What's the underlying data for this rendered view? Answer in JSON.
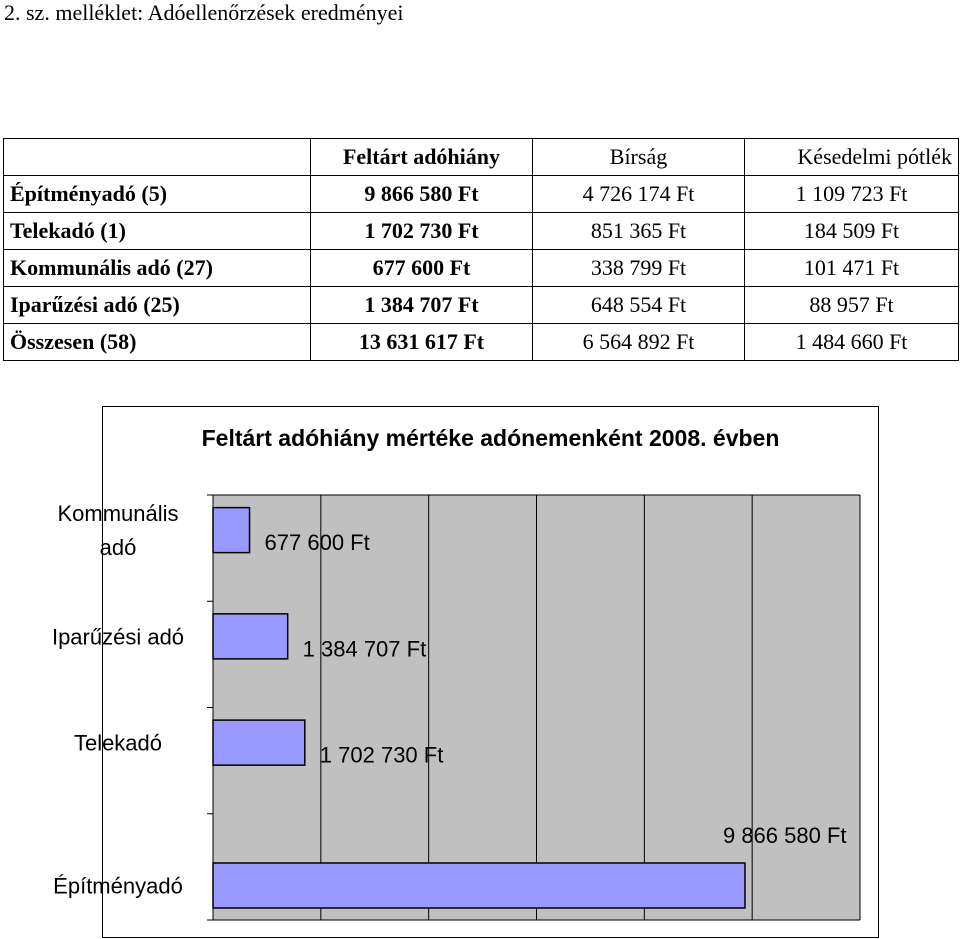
{
  "heading": "2. sz. melléklet: Adóellenőrzések eredményei",
  "table": {
    "columns": [
      "",
      "Feltárt adóhiány",
      "Bírság",
      "Késedelmi pótlék"
    ],
    "rows": [
      {
        "label": "Építményadó (5)",
        "values": [
          "9 866 580 Ft",
          "4 726 174 Ft",
          "1 109 723 Ft"
        ]
      },
      {
        "label": "Telekadó (1)",
        "values": [
          "1 702 730 Ft",
          "851 365 Ft",
          "184 509 Ft"
        ]
      },
      {
        "label": "Kommunális adó (27)",
        "values": [
          "677 600 Ft",
          "338 799 Ft",
          "101 471 Ft"
        ]
      },
      {
        "label": "Iparűzési adó (25)",
        "values": [
          "1 384 707 Ft",
          "648 554 Ft",
          "88 957 Ft"
        ]
      },
      {
        "label": "Összesen (58)",
        "values": [
          "13 631 617 Ft",
          "6 564 892 Ft",
          "1 484 660 Ft"
        ]
      }
    ]
  },
  "chart_data": {
    "type": "bar",
    "orientation": "horizontal",
    "title": "Feltárt adóhiány mértéke adónemenként 2008. évben",
    "categories": [
      [
        "Kommunális",
        "adó"
      ],
      [
        "Iparűzési adó"
      ],
      [
        "Telekadó"
      ],
      [
        "Építményadó"
      ]
    ],
    "values": [
      677600,
      1384707,
      1702730,
      9866580
    ],
    "value_labels": [
      "677 600 Ft",
      "1 384 707 Ft",
      "1 702 730 Ft",
      "9 866 580 Ft"
    ],
    "xlim": [
      0,
      12000000
    ],
    "grid": true,
    "colors": {
      "bar": "#9999ff",
      "plot_bg": "#c0c0c0",
      "grid": "#000000"
    }
  }
}
